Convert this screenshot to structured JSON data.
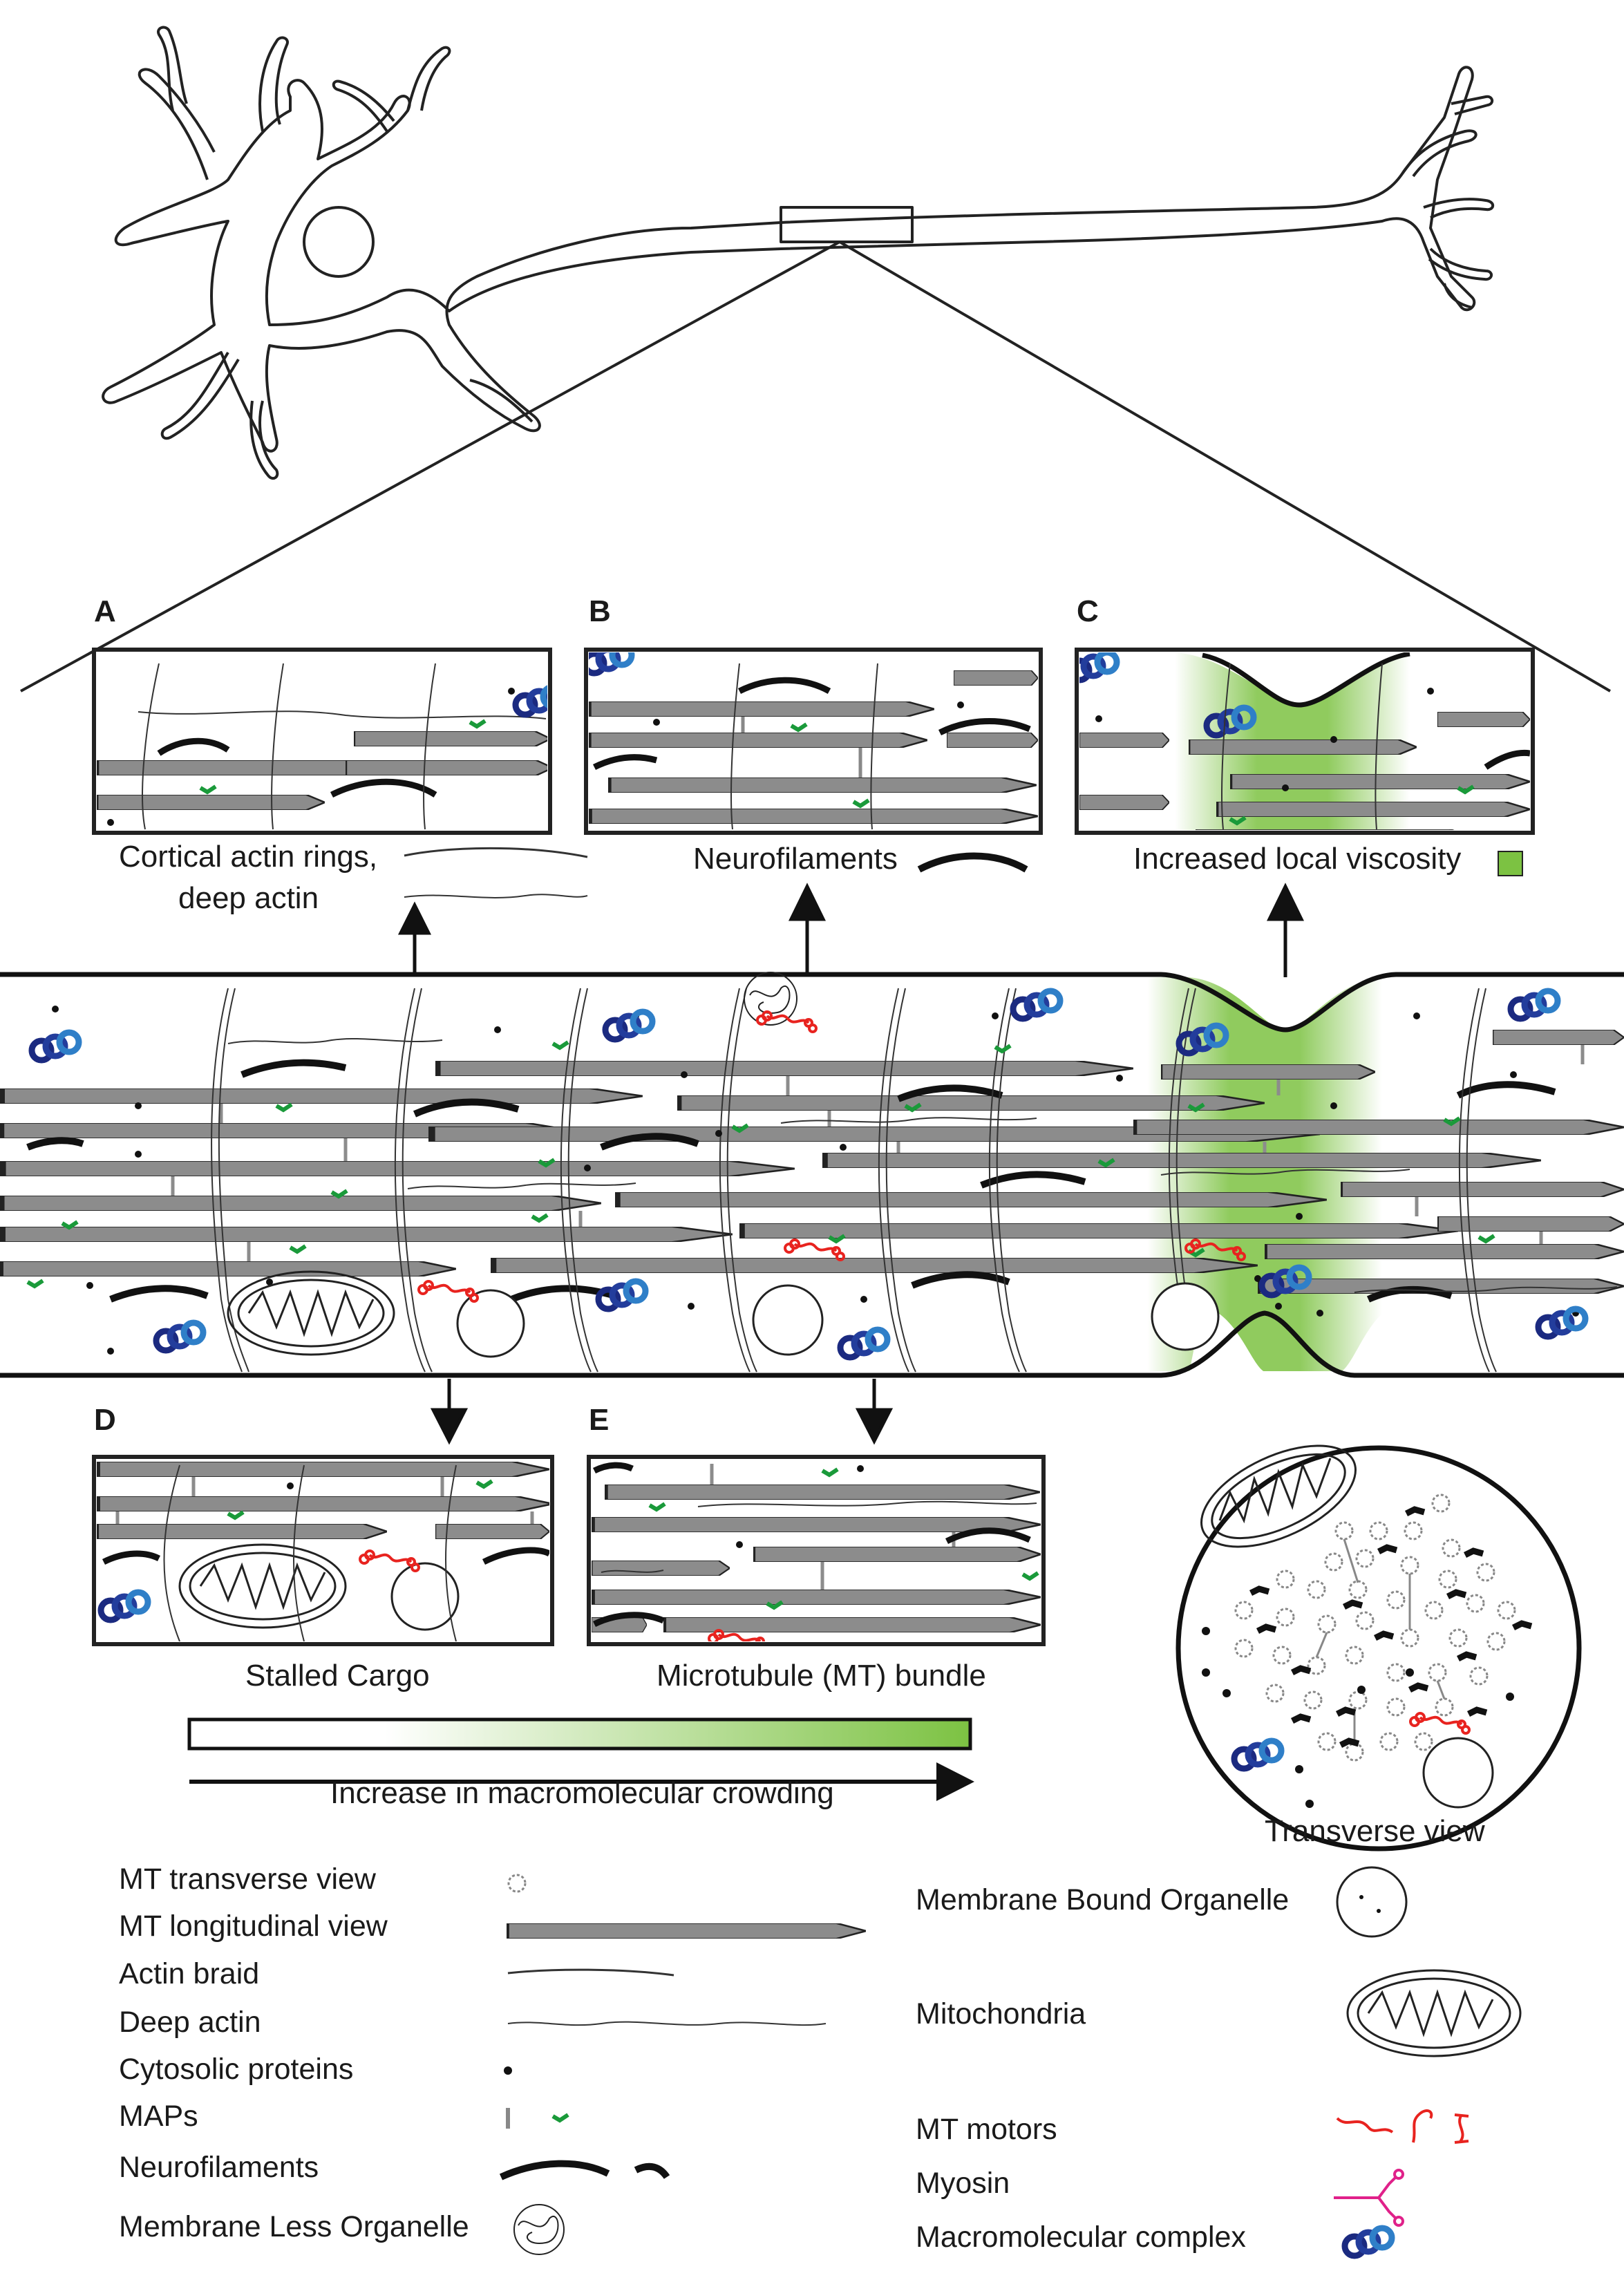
{
  "panels": {
    "a": {
      "letter": "A",
      "caption_line1": "Cortical actin rings,",
      "caption_line2": "deep actin"
    },
    "b": {
      "letter": "B",
      "caption": "Neurofilaments"
    },
    "c": {
      "letter": "C",
      "caption": "Increased local viscosity"
    },
    "d": {
      "letter": "D",
      "caption": "Stalled Cargo"
    },
    "e": {
      "letter": "E",
      "caption": "Microtubule (MT) bundle"
    }
  },
  "crowding_bar": {
    "label": "Increase in macromolecular crowding",
    "gradient_from": "#ffffff",
    "gradient_to": "#7cc242"
  },
  "transverse": {
    "label": "Transverse view"
  },
  "legend": {
    "left": [
      {
        "label": "MT transverse view",
        "icon": "mt-transverse-icon"
      },
      {
        "label": "MT longitudinal view",
        "icon": "mt-longitudinal-icon"
      },
      {
        "label": "Actin braid",
        "icon": "actin-braid-icon"
      },
      {
        "label": "Deep actin",
        "icon": "deep-actin-icon"
      },
      {
        "label": "Cytosolic proteins",
        "icon": "cytosolic-protein-icon"
      },
      {
        "label": "MAPs",
        "icon": "maps-icon"
      },
      {
        "label": "Neurofilaments",
        "icon": "neurofilament-icon"
      },
      {
        "label": "Membrane Less Organelle",
        "icon": "membrane-less-organelle-icon"
      }
    ],
    "right": [
      {
        "label": "Membrane Bound Organelle",
        "icon": "membrane-bound-organelle-icon"
      },
      {
        "label": "Mitochondria",
        "icon": "mitochondria-icon"
      },
      {
        "label": "MT motors",
        "icon": "mt-motor-icon"
      },
      {
        "label": "Myosin",
        "icon": "myosin-icon"
      },
      {
        "label": "Macromolecular complex",
        "icon": "macromolecular-complex-icon"
      }
    ]
  },
  "colors": {
    "mt_fill": "#8c8c8c",
    "viscosity_green": "#7cc242",
    "map_green": "#1a9a3a",
    "motor_red": "#e8231f",
    "myosin_pink": "#e0218a",
    "complex_dark": "#1b2a80",
    "complex_light": "#2f7fc8"
  }
}
